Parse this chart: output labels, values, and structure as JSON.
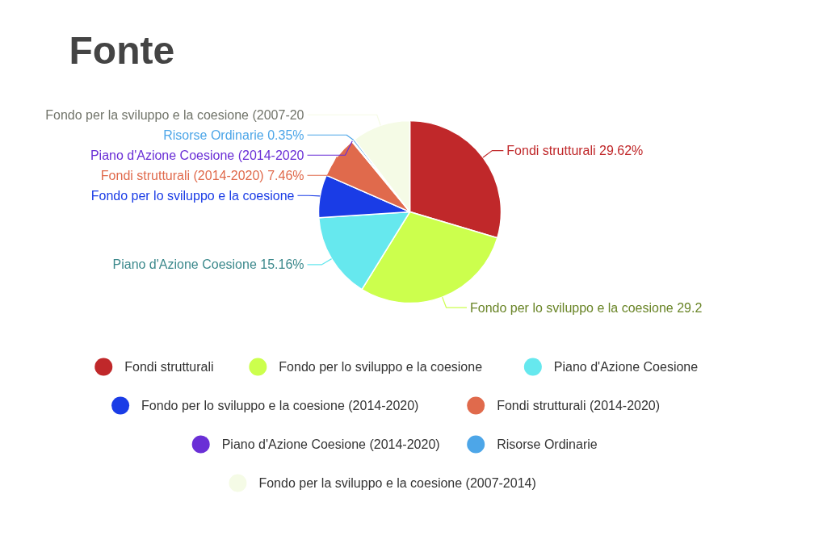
{
  "chart_data": {
    "type": "pie",
    "title": "Fonte",
    "categories": [
      "Fondi strutturali",
      "Fondo per lo sviluppo e la coesione",
      "Piano d'Azione Coesione",
      "Fondo per lo sviluppo e la coesione (2014-2020)",
      "Fondi strutturali (2014-2020)",
      "Piano d'Azione Coesione (2014-2020)",
      "Risorse Ordinarie",
      "Fondo per la sviluppo e la coesione (2007-2014)"
    ],
    "values": [
      29.62,
      29.2,
      15.16,
      7.6,
      7.46,
      0.2,
      0.35,
      10.41
    ],
    "colors": [
      "#c0282a",
      "#ccff4d",
      "#66e8ee",
      "#1a3ce6",
      "#e06a4c",
      "#6a2fd6",
      "#4da6e8",
      "#f5fbe6"
    ],
    "value_labels": [
      "Fondi strutturali 29.62%",
      "Fondo per lo sviluppo e la coesione 29.2",
      "Piano d'Azione Coesione 15.16%",
      "Fondo per lo sviluppo e la coesione",
      "Fondi strutturali (2014-2020) 7.46%",
      "Piano d'Azione Coesione (2014-2020",
      "Risorse Ordinarie 0.35%",
      "Fondo per la sviluppo e la coesione (2007-20"
    ],
    "legend": "bottom"
  }
}
